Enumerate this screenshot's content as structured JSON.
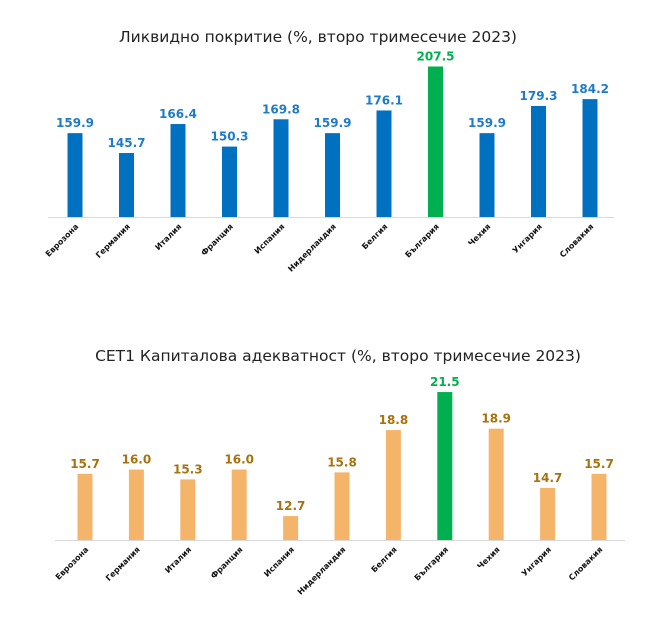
{
  "chart_data": [
    {
      "type": "bar",
      "title": "Ликвидно покритие (%, второ тримесечие 2023)",
      "categories": [
        "Еврозона",
        "Германия",
        "Италия",
        "Франция",
        "Испания",
        "Нидерландия",
        "Белгия",
        "България",
        "Чехия",
        "Унгария",
        "Словакия"
      ],
      "values": [
        159.9,
        145.7,
        166.4,
        150.3,
        169.8,
        159.9,
        176.1,
        207.5,
        159.9,
        179.3,
        184.2
      ],
      "value_labels": [
        "159.9",
        "145.7",
        "166.4",
        "150.3",
        "169.8",
        "159.9",
        "176.1",
        "207.5",
        "159.9",
        "179.3",
        "184.2"
      ],
      "highlight_index": 7,
      "ylim": [
        100,
        210
      ],
      "grid": false,
      "colors": {
        "bar": "#0070c0",
        "label": "#1f7bc8",
        "highlight": "#00b050"
      }
    },
    {
      "type": "bar",
      "title": "CET1 Капиталова адекватност (%, второ тримесечие 2023)",
      "categories": [
        "Еврозона",
        "Германия",
        "Италия",
        "Франция",
        "Испания",
        "Нидерландия",
        "Белгия",
        "България",
        "Чехия",
        "Унгария",
        "Словакия"
      ],
      "values": [
        15.7,
        16.0,
        15.3,
        16.0,
        12.7,
        15.8,
        18.8,
        21.5,
        18.9,
        14.7,
        15.7
      ],
      "value_labels": [
        "15.7",
        "16.0",
        "15.3",
        "16.0",
        "12.7",
        "15.8",
        "18.8",
        "21.5",
        "18.9",
        "14.7",
        "15.7"
      ],
      "highlight_index": 7,
      "ylim": [
        11,
        22
      ],
      "grid": false,
      "colors": {
        "bar": "#f4b56b",
        "label": "#a7720f",
        "highlight": "#00b050"
      }
    }
  ]
}
